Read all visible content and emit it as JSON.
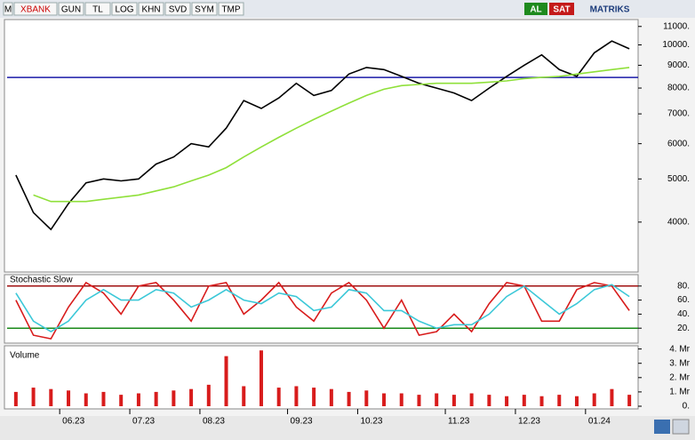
{
  "toolbar": {
    "items": [
      "M",
      "XBANK",
      "GUN",
      "TL",
      "LOG",
      "KHN",
      "SVD",
      "SYM",
      "TMP"
    ],
    "buy": "AL",
    "sell": "SAT",
    "brand": "MATRIKS"
  },
  "chart_data": [
    {
      "type": "line",
      "log_scale": true,
      "ylim": [
        3090,
        11400
      ],
      "yticks": [
        {
          "value": 4000,
          "label": "4000."
        },
        {
          "value": 5000,
          "label": "5000."
        },
        {
          "value": 6000,
          "label": "6000."
        },
        {
          "value": 7000,
          "label": "7000."
        },
        {
          "value": 8000,
          "label": "8000."
        },
        {
          "value": 9000,
          "label": "9000."
        },
        {
          "value": 10000,
          "label": "10000."
        },
        {
          "value": 11000,
          "label": "11000."
        }
      ],
      "hlines": [
        {
          "value": 8450,
          "color": "#1a1aa8"
        }
      ],
      "series": [
        {
          "color": "#000000",
          "values": [
            5100,
            4200,
            3850,
            4400,
            4900,
            5000,
            4950,
            5000,
            5400,
            5600,
            6000,
            5900,
            6500,
            7500,
            7200,
            7600,
            8200,
            7700,
            7900,
            8600,
            8900,
            8800,
            8500,
            8200,
            8000,
            7800,
            7500,
            8000,
            8500,
            9000,
            9500,
            8800,
            8500,
            9600,
            10200,
            9800
          ]
        },
        {
          "color": "#8fe03a",
          "values": [
            null,
            4600,
            4450,
            4450,
            4450,
            4500,
            4550,
            4600,
            4700,
            4800,
            4950,
            5100,
            5300,
            5600,
            5900,
            6200,
            6500,
            6800,
            7100,
            7400,
            7700,
            7950,
            8100,
            8150,
            8200,
            8200,
            8200,
            8250,
            8300,
            8400,
            8450,
            8500,
            8600,
            8700,
            8800,
            8900
          ]
        }
      ]
    },
    {
      "type": "line",
      "title": "Stochastic Slow",
      "ylim": [
        0,
        100
      ],
      "yticks": [
        {
          "value": 20,
          "label": "20."
        },
        {
          "value": 40,
          "label": "40."
        },
        {
          "value": 60,
          "label": "60."
        },
        {
          "value": 80,
          "label": "80."
        }
      ],
      "hlines": [
        {
          "value": 80,
          "color": "#a01010"
        },
        {
          "value": 20,
          "color": "#1a8a1a"
        }
      ],
      "series": [
        {
          "color": "#d81c1c",
          "values": [
            60,
            10,
            5,
            50,
            85,
            70,
            40,
            80,
            85,
            60,
            30,
            80,
            85,
            40,
            60,
            85,
            50,
            30,
            70,
            85,
            60,
            20,
            60,
            10,
            15,
            40,
            15,
            55,
            85,
            80,
            30,
            30,
            75,
            85,
            80,
            45
          ]
        },
        {
          "color": "#3cc8d8",
          "values": [
            70,
            30,
            15,
            30,
            60,
            75,
            60,
            60,
            75,
            70,
            50,
            60,
            75,
            60,
            55,
            70,
            65,
            45,
            50,
            75,
            70,
            45,
            45,
            30,
            20,
            25,
            25,
            40,
            65,
            80,
            60,
            40,
            55,
            75,
            82,
            65
          ]
        }
      ]
    },
    {
      "type": "bar",
      "title": "Volume",
      "ylim": [
        0,
        4.1
      ],
      "color": "#d81c1c",
      "yticks": [
        {
          "value": 0,
          "label": "0."
        },
        {
          "value": 1,
          "label": "1. Mr"
        },
        {
          "value": 2,
          "label": "2. Mr"
        },
        {
          "value": 3,
          "label": "3. Mr"
        },
        {
          "value": 4,
          "label": "4. Mr"
        }
      ],
      "categories": [
        null,
        null,
        null,
        "06.23",
        null,
        null,
        null,
        "07.23",
        null,
        null,
        null,
        "08.23",
        null,
        null,
        null,
        null,
        "09.23",
        null,
        null,
        null,
        "10.23",
        null,
        null,
        null,
        null,
        "11.23",
        null,
        null,
        null,
        "12.23",
        null,
        null,
        null,
        "01.24",
        null,
        null
      ],
      "values": [
        1.0,
        1.3,
        1.2,
        1.1,
        0.9,
        1.0,
        0.8,
        0.9,
        1.0,
        1.1,
        1.2,
        1.5,
        3.5,
        1.4,
        3.9,
        1.3,
        1.4,
        1.3,
        1.2,
        1.0,
        1.1,
        0.9,
        0.9,
        0.8,
        0.9,
        0.8,
        0.9,
        0.8,
        0.7,
        0.8,
        0.7,
        0.8,
        0.7,
        0.9,
        1.2,
        0.8
      ]
    }
  ]
}
